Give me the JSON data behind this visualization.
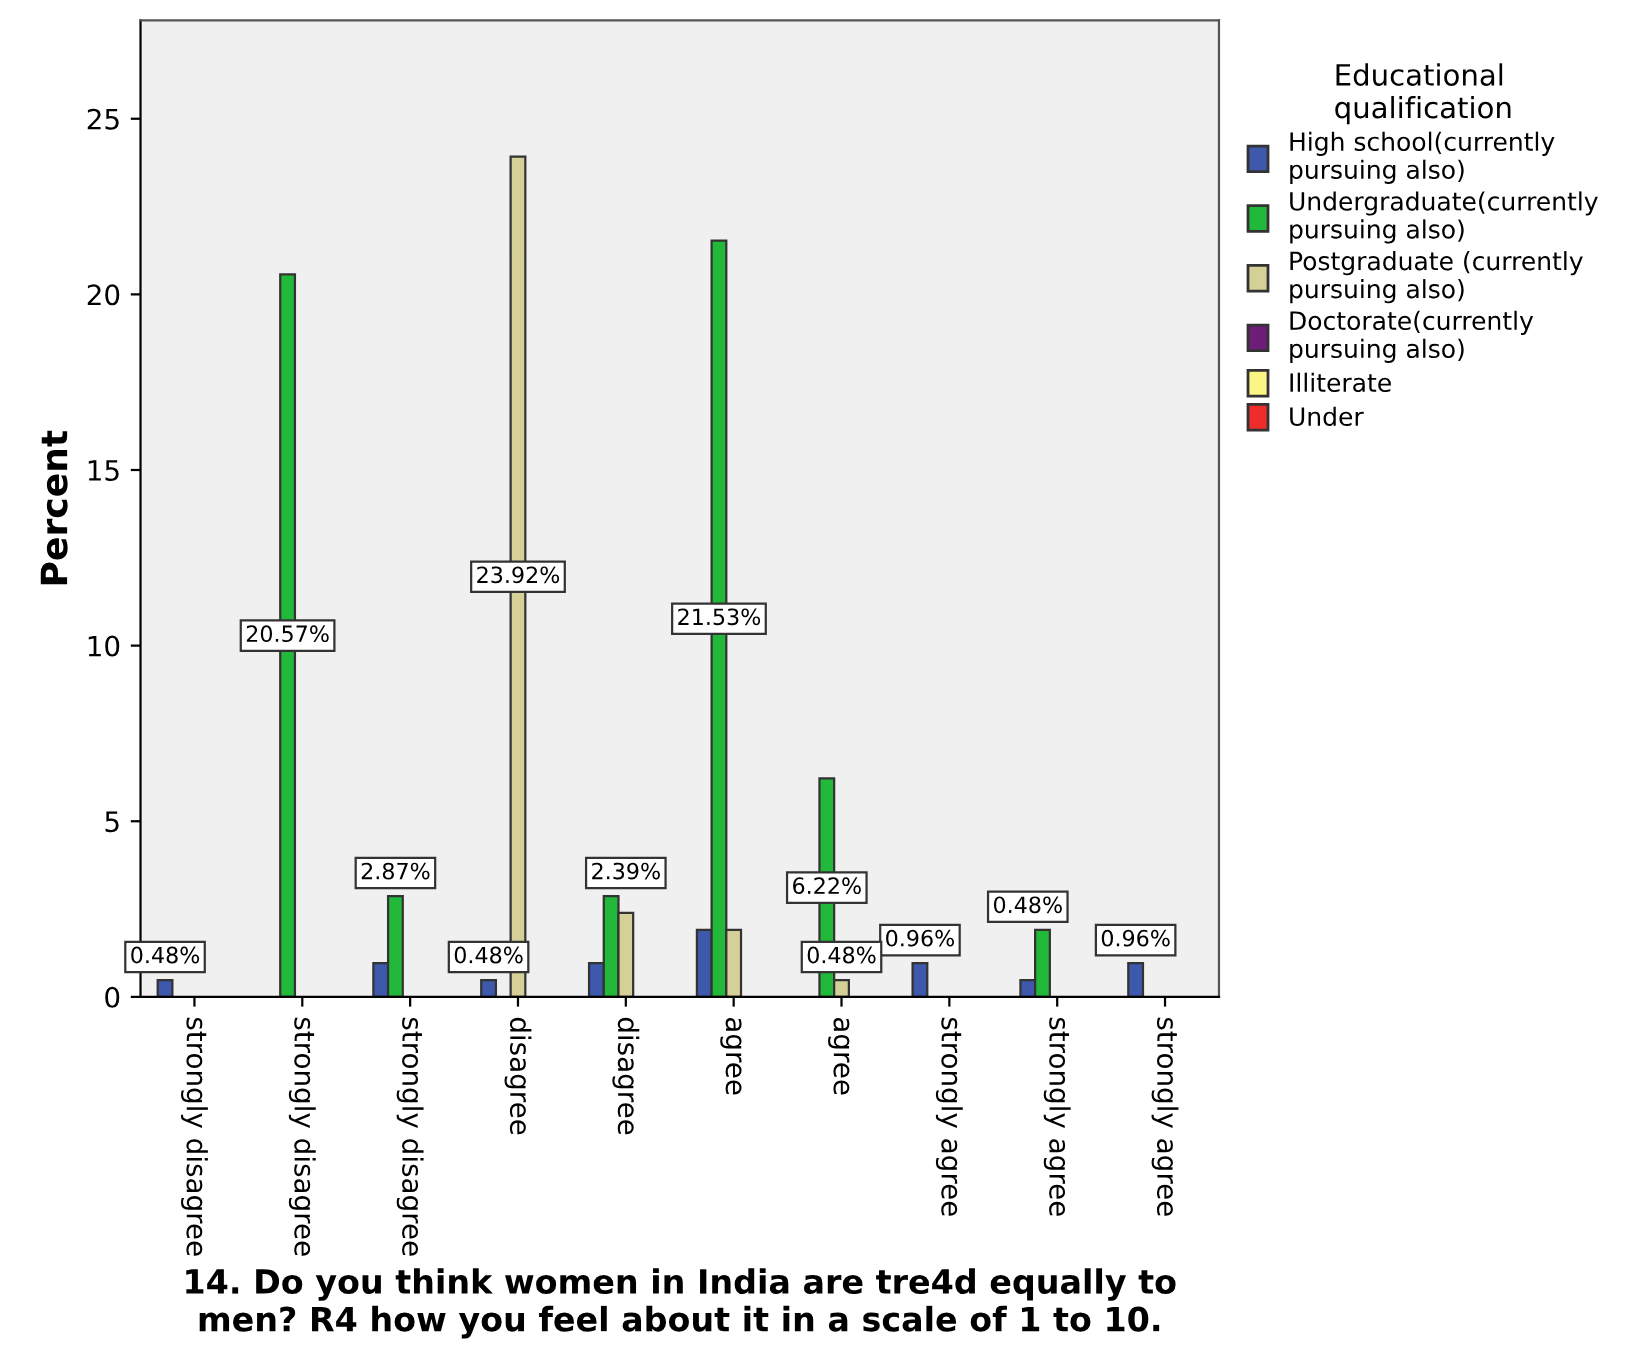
{
  "chart_data": {
    "type": "bar",
    "xlabel": "14. Do you think women in India are tre4d equally to\nmen? R4 how you feel about it in a scale of 1 to 10.",
    "ylabel": "Percent",
    "legend_title": "Educational\nqualification",
    "legend": "right",
    "categories": [
      "strongly disagree",
      "strongly disagree",
      "strongly disagree",
      "disagree",
      "disagree",
      "agree",
      "agree",
      "strongly agree",
      "strongly agree",
      "strongly agree"
    ],
    "ylim": [
      0,
      27.8
    ],
    "yticks": [
      0,
      5,
      10,
      15,
      20,
      25
    ],
    "grid": false,
    "series": [
      {
        "name": "High school(currently\npursuing also)",
        "color": "#3e58ac",
        "values": [
          0.48,
          null,
          0.96,
          0.48,
          0.96,
          1.91,
          null,
          0.96,
          0.48,
          0.96
        ],
        "value_labels": [
          "0.48%",
          null,
          null,
          "0.48%",
          null,
          null,
          null,
          "0.96%",
          "0.48%",
          "0.96%"
        ]
      },
      {
        "name": "Undergraduate(currently\npursuing also)",
        "color": "#22b83a",
        "values": [
          null,
          20.57,
          2.87,
          null,
          2.87,
          21.53,
          6.22,
          null,
          1.91,
          null
        ],
        "value_labels": [
          null,
          "20.57%",
          "2.87%",
          null,
          null,
          "21.53%",
          "6.22%",
          null,
          null,
          null
        ]
      },
      {
        "name": "Postgraduate (currently\npursuing also)",
        "color": "#d5cf98",
        "values": [
          null,
          null,
          null,
          23.92,
          2.39,
          1.91,
          0.48,
          null,
          null,
          null
        ],
        "value_labels": [
          null,
          null,
          null,
          "23.92%",
          "2.39%",
          null,
          "0.48%",
          null,
          null,
          null
        ]
      },
      {
        "name": "Doctorate(currently\npursuing also)",
        "color": "#6e1e78",
        "values": [
          null,
          null,
          null,
          null,
          null,
          null,
          null,
          null,
          null,
          null
        ]
      },
      {
        "name": "Illiterate",
        "color": "#fbf583",
        "values": [
          null,
          null,
          null,
          null,
          null,
          null,
          null,
          null,
          null,
          null
        ]
      },
      {
        "name": "Under",
        "color": "#ee2c2c",
        "values": [
          null,
          null,
          null,
          null,
          null,
          null,
          null,
          null,
          null,
          null
        ]
      }
    ]
  }
}
